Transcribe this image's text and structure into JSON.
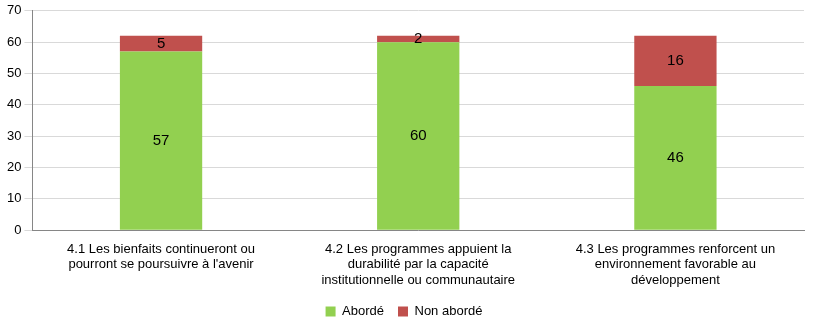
{
  "chart_data": {
    "type": "bar",
    "stacked": true,
    "categories": [
      "4.1 Les bienfaits continueront ou pourront se poursuivre à l'avenir",
      "4.2 Les programmes appuient la durabilité par la capacité institutionnelle ou communautaire",
      "4.3 Les programmes renforcent un environnement favorable au développement"
    ],
    "series": [
      {
        "name": "Abordé",
        "color": "#92d050",
        "values": [
          57,
          60,
          46
        ]
      },
      {
        "name": "Non abordé",
        "color": "#c0504d",
        "values": [
          5,
          2,
          16
        ]
      }
    ],
    "ylim": [
      0,
      70
    ],
    "yticks": [
      0,
      10,
      20,
      30,
      40,
      50,
      60,
      70
    ],
    "grid": true,
    "legend": "bottom",
    "data_labels": true
  }
}
